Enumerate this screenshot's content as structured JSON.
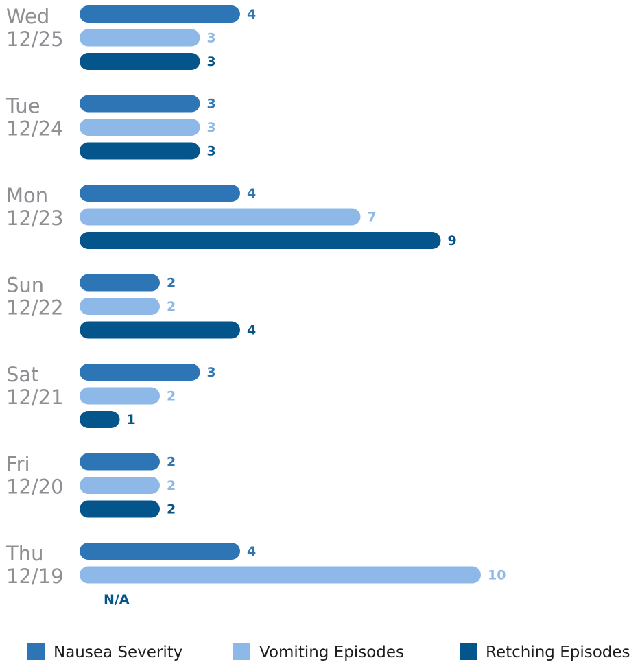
{
  "chart_data": {
    "type": "bar",
    "orientation": "horizontal",
    "categories": [
      {
        "day": "Wed",
        "date": "12/25"
      },
      {
        "day": "Tue",
        "date": "12/24"
      },
      {
        "day": "Mon",
        "date": "12/23"
      },
      {
        "day": "Sun",
        "date": "12/22"
      },
      {
        "day": "Sat",
        "date": "12/21"
      },
      {
        "day": "Fri",
        "date": "12/20"
      },
      {
        "day": "Thu",
        "date": "12/19"
      }
    ],
    "series": [
      {
        "name": "Nausea Severity",
        "color": "#2e75b6",
        "values": [
          4,
          3,
          4,
          2,
          3,
          2,
          4
        ]
      },
      {
        "name": "Vomiting Episodes",
        "color": "#8db8e8",
        "values": [
          3,
          3,
          7,
          2,
          2,
          2,
          10
        ]
      },
      {
        "name": "Retching Episodes",
        "color": "#03558c",
        "values": [
          3,
          3,
          9,
          4,
          1,
          2,
          null
        ]
      }
    ],
    "missing_label": "N/A",
    "xlim": [
      0,
      10
    ],
    "grid": false,
    "legend_position": "bottom"
  }
}
